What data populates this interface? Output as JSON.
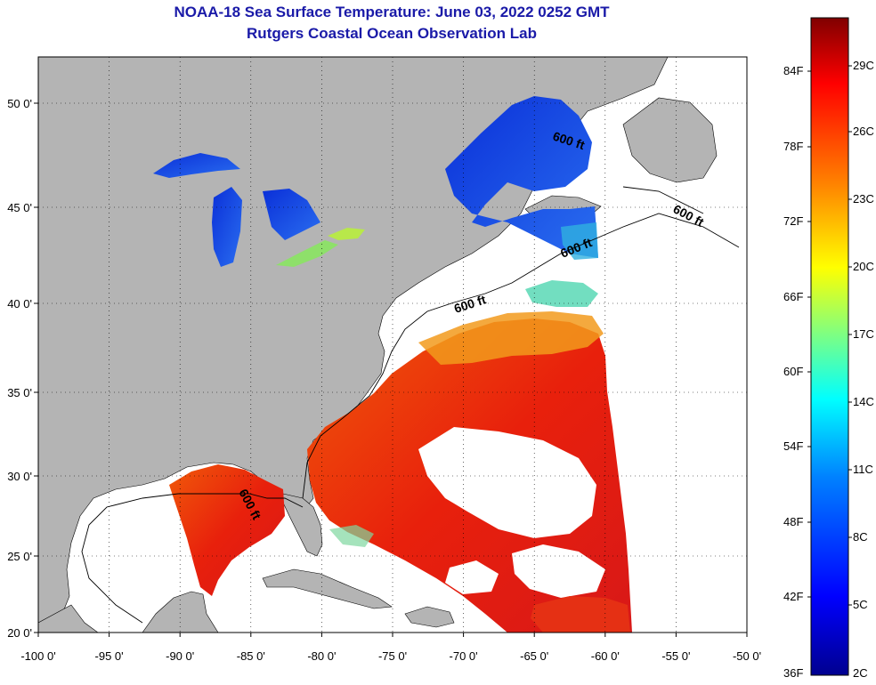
{
  "title": "NOAA-18 Sea Surface Temperature:  June 03, 2022 0252 GMT",
  "subtitle": "Rutgers Coastal Ocean Observation Lab",
  "map": {
    "lon_ticks": [
      "-100 0'",
      "-95 0'",
      "-90 0'",
      "-85 0'",
      "-80 0'",
      "-75 0'",
      "-70 0'",
      "-65 0'",
      "-60 0'",
      "-55 0'",
      "-50 0'"
    ],
    "lat_ticks": [
      "50 0'",
      "45 0'",
      "40 0'",
      "35 0'",
      "30 0'",
      "25 0'",
      "20 0'"
    ],
    "contour_labels": [
      "600 ft",
      "600 ft",
      "600 ft",
      "600 ft",
      "600 ft"
    ],
    "colors": {
      "land": "#b4b4b4",
      "ocean_nodata": "#ffffff",
      "warm": "#e8200c",
      "cool": "#1a4be0"
    }
  },
  "colorbar": {
    "fahrenheit": [
      "84F",
      "78F",
      "72F",
      "66F",
      "60F",
      "54F",
      "48F",
      "42F",
      "36F"
    ],
    "celsius": [
      "29C",
      "26C",
      "23C",
      "20C",
      "17C",
      "14C",
      "11C",
      "8C",
      "5C",
      "2C"
    ],
    "range_f": [
      36,
      88
    ],
    "colors": [
      "#00008f",
      "#0000ff",
      "#0080ff",
      "#00ffff",
      "#80ff80",
      "#ffff00",
      "#ff8000",
      "#ff0000",
      "#800000"
    ]
  }
}
